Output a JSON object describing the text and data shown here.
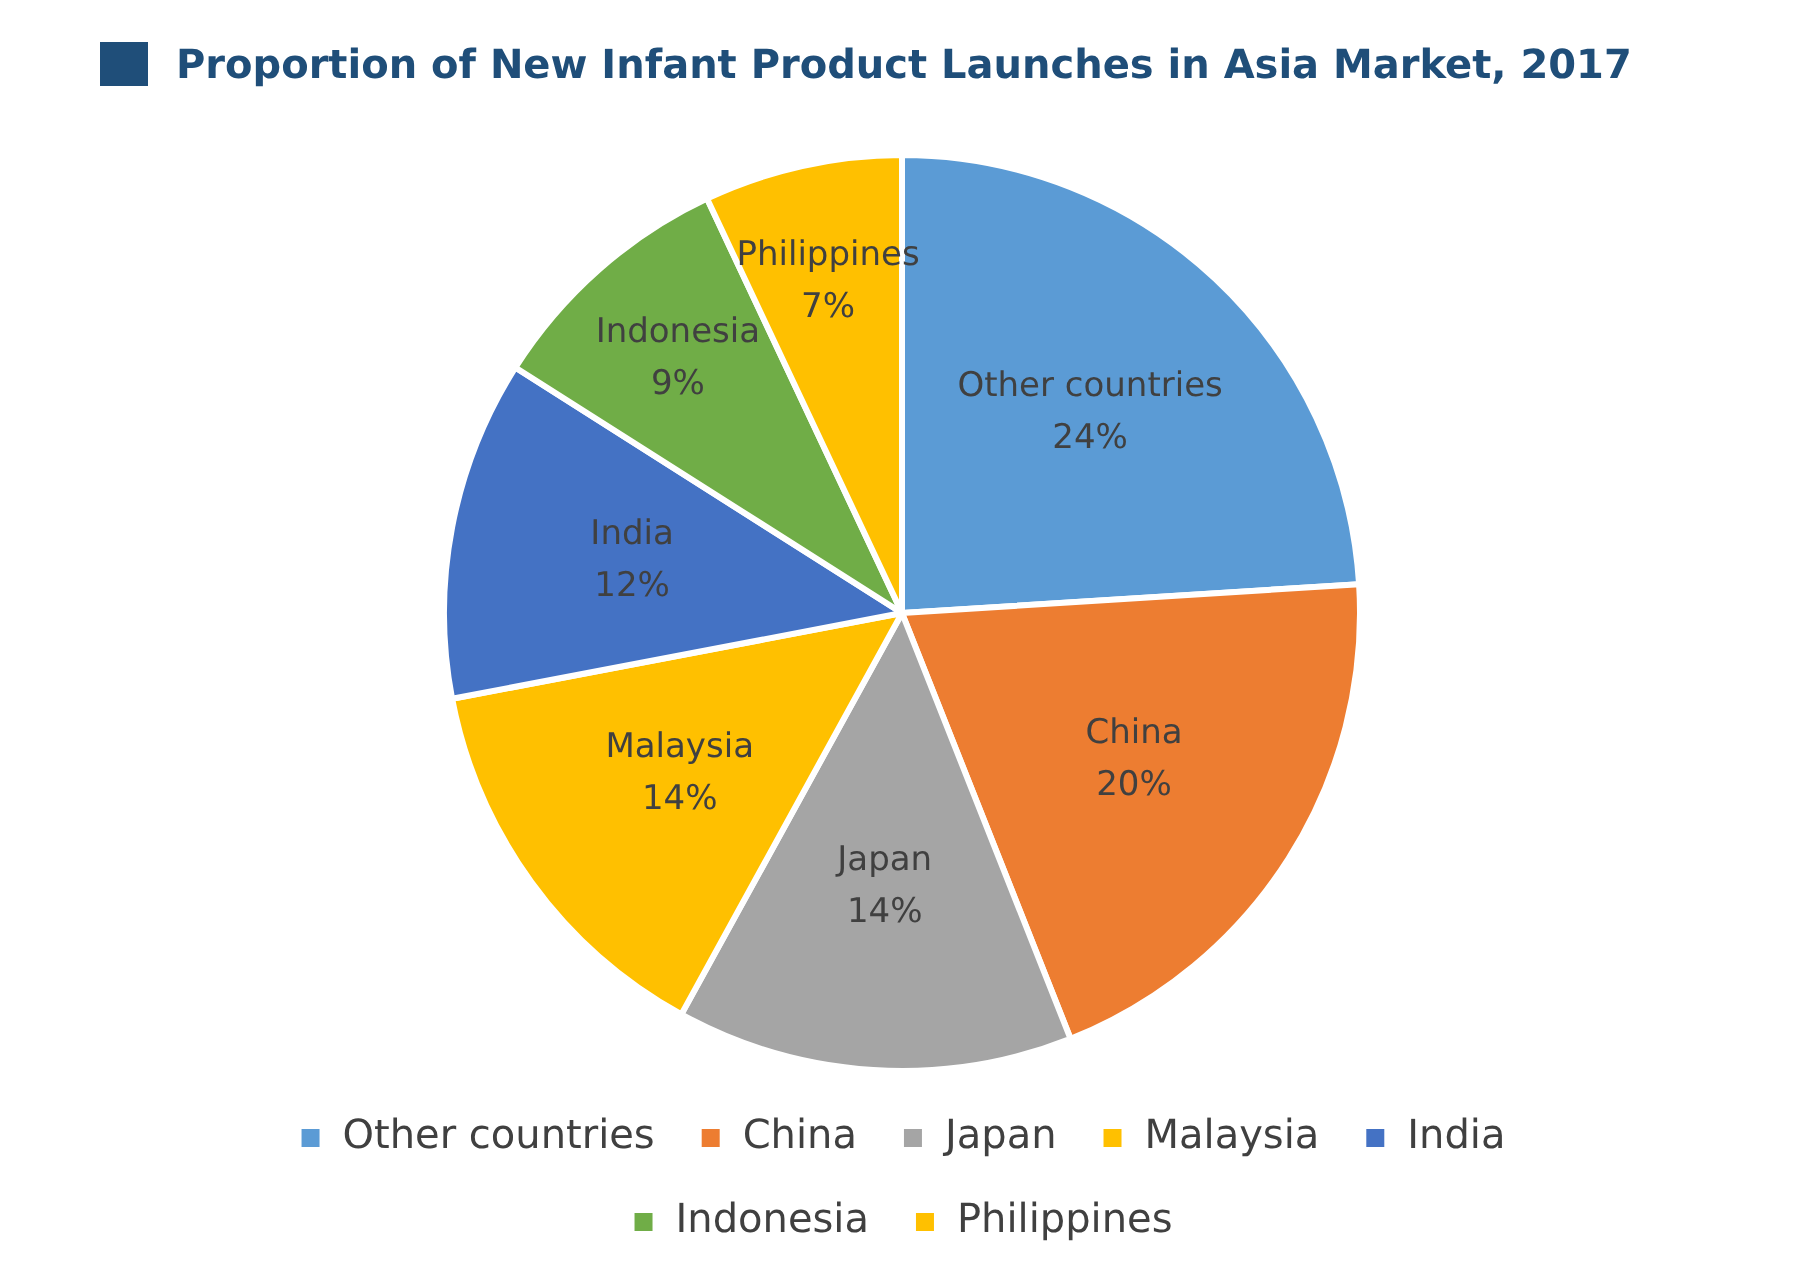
{
  "chart_data": {
    "type": "pie",
    "title": "Proportion of New Infant Product Launches in Asia Market, 2017",
    "categories": [
      "Other countries",
      "China",
      "Japan",
      "Malaysia",
      "India",
      "Indonesia",
      "Philippines"
    ],
    "values": [
      24,
      20,
      14,
      14,
      12,
      9,
      7
    ],
    "colors": [
      "#5b9bd5",
      "#ed7d31",
      "#a5a5a5",
      "#ffc000",
      "#4472c4",
      "#70ad47",
      "#ffc000"
    ],
    "value_labels": [
      "24%",
      "20%",
      "14%",
      "14%",
      "12%",
      "9%",
      "7%"
    ],
    "legend": "bottom"
  }
}
